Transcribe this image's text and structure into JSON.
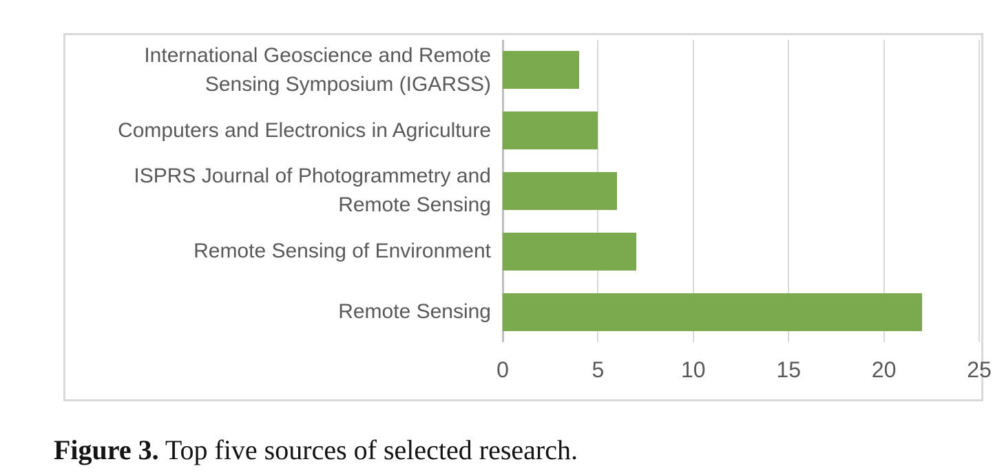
{
  "chart_data": {
    "type": "bar",
    "orientation": "horizontal",
    "title": "",
    "categories": [
      "International Geoscience and Remote Sensing Symposium (IGARSS)",
      "Computers and Electronics in Agriculture",
      "ISPRS Journal of Photogrammetry and Remote Sensing",
      "Remote Sensing of Environment",
      "Remote Sensing"
    ],
    "values": [
      4,
      5,
      6,
      7,
      22
    ],
    "xlabel": "",
    "ylabel": "",
    "xlim": [
      0,
      25
    ],
    "xticks": [
      "0",
      "5",
      "10",
      "15",
      "20",
      "25"
    ],
    "grid": true,
    "legend": false,
    "colors": {
      "bar": "#7AA94E",
      "gridline": "#D9D9D9",
      "axis_line": "#BFBFBF",
      "tick_label": "#595959",
      "category_label": "#595959",
      "frame_border": "#D9D9D9"
    }
  },
  "caption": {
    "label": "Figure 3.",
    "text": " Top five sources of selected research."
  }
}
